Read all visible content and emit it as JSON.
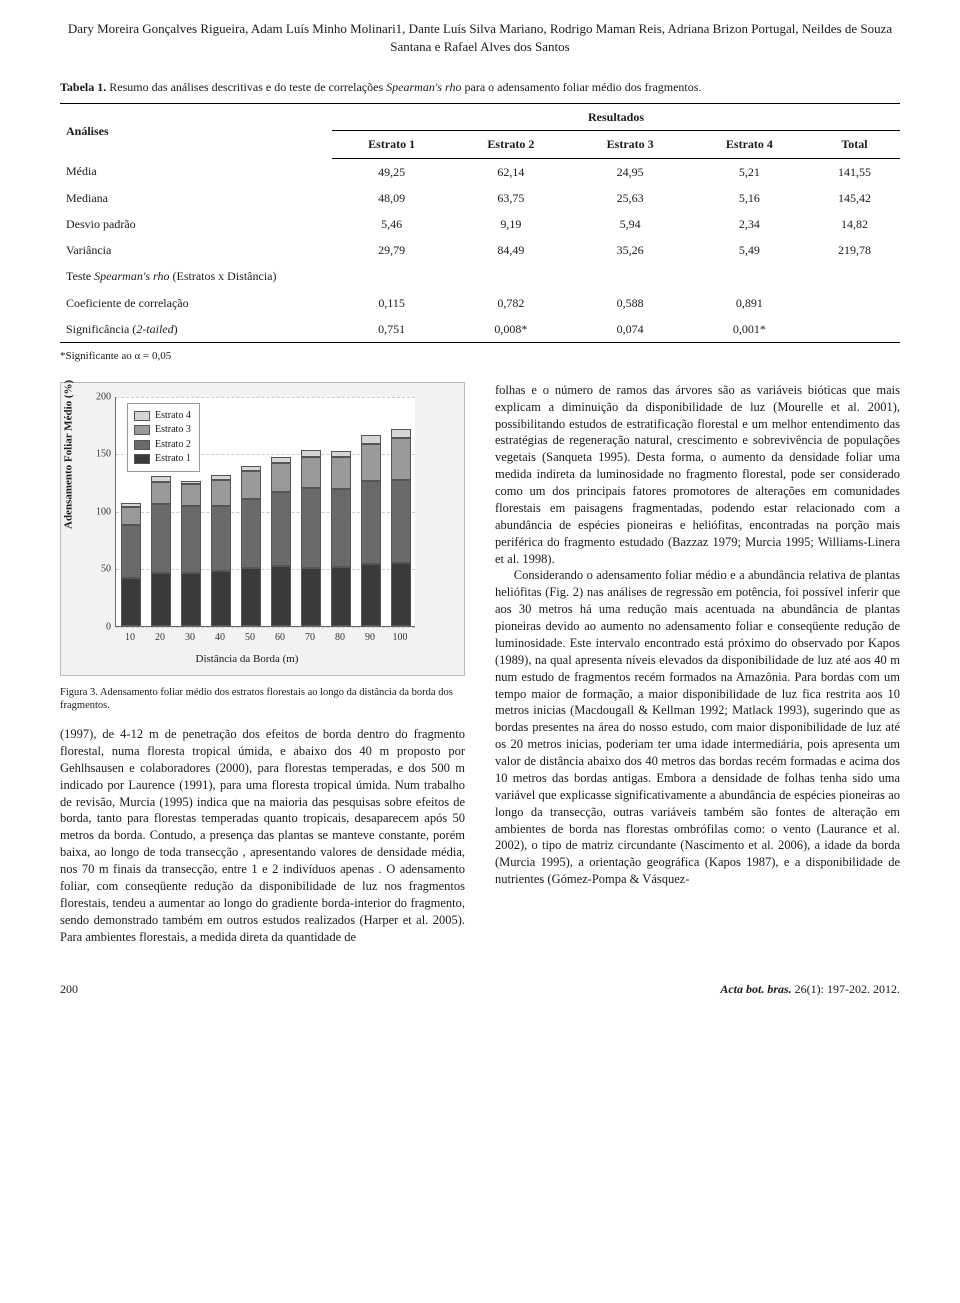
{
  "authors": "Dary Moreira Gonçalves Rigueira, Adam Luís Minho Molinari1, Dante Luís Silva Mariano, Rodrigo Maman Reis, Adriana Brizon Portugal, Neildes de Souza Santana e Rafael Alves dos Santos",
  "table": {
    "caption_prefix": "Tabela 1.",
    "caption_text": " Resumo das análises descritivas e do teste de correlações ",
    "caption_italic": "Spearman's rho",
    "caption_suffix": " para o adensamento foliar médio dos fragmentos.",
    "header_analises": "Análises",
    "header_resultados": "Resultados",
    "cols": [
      "Estrato 1",
      "Estrato 2",
      "Estrato 3",
      "Estrato 4",
      "Total"
    ],
    "rows": [
      {
        "label": "Média",
        "vals": [
          "49,25",
          "62,14",
          "24,95",
          "5,21",
          "141,55"
        ]
      },
      {
        "label": "Mediana",
        "vals": [
          "48,09",
          "63,75",
          "25,63",
          "5,16",
          "145,42"
        ]
      },
      {
        "label": "Desvio padrão",
        "vals": [
          "5,46",
          "9,19",
          "5,94",
          "2,34",
          "14,82"
        ]
      },
      {
        "label": "Variância",
        "vals": [
          "29,79",
          "84,49",
          "35,26",
          "5,49",
          "219,78"
        ]
      }
    ],
    "section_label_pre": "Teste ",
    "section_label_it": "Spearman's rho",
    "section_label_post": " (Estratos x Distância)",
    "corr_rows": [
      {
        "label": "Coeficiente de correlação",
        "vals": [
          "0,115",
          "0,782",
          "0,588",
          "0,891",
          ""
        ]
      },
      {
        "label_pre": "Significância (",
        "label_it": "2-tailed",
        "label_post": ")",
        "vals": [
          "0,751",
          "0,008*",
          "0,074",
          "0,001*",
          ""
        ]
      }
    ],
    "footnote": "*Significante ao α = 0,05"
  },
  "chart": {
    "type": "stacked-bar",
    "ylabel": "Adensamento Foliar Médio (%)",
    "xlabel": "Distância da Borda (m)",
    "ymax": 200,
    "yticks": [
      0,
      50,
      100,
      150,
      200
    ],
    "xticks": [
      "10",
      "20",
      "30",
      "40",
      "50",
      "60",
      "70",
      "80",
      "90",
      "100"
    ],
    "colors": {
      "estrato1": "#3a3a3a",
      "estrato2": "#6a6a6a",
      "estrato3": "#9a9a9a",
      "estrato4": "#d5d5d5",
      "bg": "#f2f2f0",
      "plot_bg": "#ffffff"
    },
    "legend": [
      "Estrato 4",
      "Estrato 3",
      "Estrato 2",
      "Estrato 1"
    ],
    "legend_colors": [
      "#d5d5d5",
      "#9a9a9a",
      "#6a6a6a",
      "#3a3a3a"
    ],
    "bars": [
      {
        "x": "10",
        "s1": 42,
        "s2": 46,
        "s3": 15,
        "s4": 4
      },
      {
        "x": "20",
        "s1": 46,
        "s2": 60,
        "s3": 19,
        "s4": 5
      },
      {
        "x": "30",
        "s1": 46,
        "s2": 58,
        "s3": 19,
        "s4": 3
      },
      {
        "x": "40",
        "s1": 48,
        "s2": 56,
        "s3": 23,
        "s4": 4
      },
      {
        "x": "50",
        "s1": 50,
        "s2": 60,
        "s3": 25,
        "s4": 4
      },
      {
        "x": "60",
        "s1": 52,
        "s2": 64,
        "s3": 26,
        "s4": 5
      },
      {
        "x": "70",
        "s1": 50,
        "s2": 70,
        "s3": 27,
        "s4": 6
      },
      {
        "x": "80",
        "s1": 51,
        "s2": 68,
        "s3": 28,
        "s4": 5
      },
      {
        "x": "90",
        "s1": 54,
        "s2": 72,
        "s3": 32,
        "s4": 8
      },
      {
        "x": "100",
        "s1": 55,
        "s2": 72,
        "s3": 36,
        "s4": 8
      }
    ]
  },
  "fig_caption": "Figura 3. Adensamento foliar médio dos estratos florestais ao longo da distância da borda dos fragmentos.",
  "body": {
    "left_p1": "(1997), de 4-12 m de penetração dos efeitos de borda dentro do fragmento florestal, numa floresta tropical úmida, e abaixo dos 40 m proposto por Gehlhsausen e colaboradores (2000), para florestas temperadas, e dos 500 m indicado por Laurence (1991), para uma floresta tropical úmida. Num trabalho de revisão, Murcia (1995) indica que na maioria das pesquisas sobre efeitos de borda, tanto para florestas temperadas quanto tropicais, desaparecem após 50 metros da borda. Contudo, a presença das plantas se manteve constante, porém baixa, ao longo de toda transecção , apresentando valores de densidade média, nos 70 m finais da transecção, entre 1 e 2 indivíduos apenas . O adensamento foliar, com conseqüente redução da disponibilidade de luz nos fragmentos florestais, tendeu a aumentar ao longo do gradiente borda-interior do fragmento, sendo demonstrado também em outros estudos realizados (Harper et al. 2005). Para ambientes florestais, a medida direta da quantidade de",
    "right_p1": "folhas e o número de ramos das árvores são as variáveis bióticas que mais explicam a diminuição da disponibilidade de luz (Mourelle et al. 2001), possibilitando estudos de estratificação florestal e um melhor entendimento das estratégias de regeneração natural, crescimento e sobrevivência de populações vegetais (Sanqueta 1995). Desta forma, o aumento da densidade foliar uma medida indireta da luminosidade no fragmento florestal, pode ser considerado como um dos principais fatores promotores de alterações em comunidades florestais em paisagens fragmentadas, podendo estar relacionado com a abundância de espécies pioneiras e heliófitas, encontradas na porção mais periférica do fragmento estudado (Bazzaz 1979; Murcia 1995; Williams-Linera et al. 1998).",
    "right_p2": "Considerando o adensamento foliar médio e a abundância relativa de plantas heliófitas (Fig. 2) nas análises de regressão em potência, foi possível inferir que aos 30 metros há uma redução mais acentuada na abundância de plantas pioneiras devido ao aumento no adensamento foliar e conseqüente redução de luminosidade. Este intervalo encontrado está próximo do observado por Kapos (1989), na qual apresenta níveis elevados da disponibilidade de luz até aos 40 m num estudo de fragmentos recém formados na Amazônia. Para bordas com um tempo maior de formação, a maior disponibilidade de luz fica restrita aos 10 metros inicias (Macdougall & Kellman 1992; Matlack 1993), sugerindo que as bordas presentes na área do nosso estudo, com maior disponibilidade de luz até os 20 metros inicias, poderiam ter uma idade intermediária, pois apresenta um valor de distância abaixo dos 40 metros das bordas recém formadas e acima dos 10 metros das bordas antigas. Embora a densidade de folhas tenha sido uma variável que explicasse significativamente a abundância de espécies pioneiras ao longo da transecção, outras variáveis também são fontes de alteração em ambientes de borda nas florestas ombrófilas como: o vento (Laurance et al. 2002), o tipo de matriz circundante (Nascimento et al. 2006), a idade da borda (Murcia 1995), a orientação geográfica (Kapos 1987), e a disponibilidade de nutrientes (Gómez-Pompa & Vásquez-"
  },
  "footer": {
    "page": "200",
    "ref_pre": "Acta bot. bras.",
    "ref_post": " 26(1): 197-202. 2012."
  }
}
